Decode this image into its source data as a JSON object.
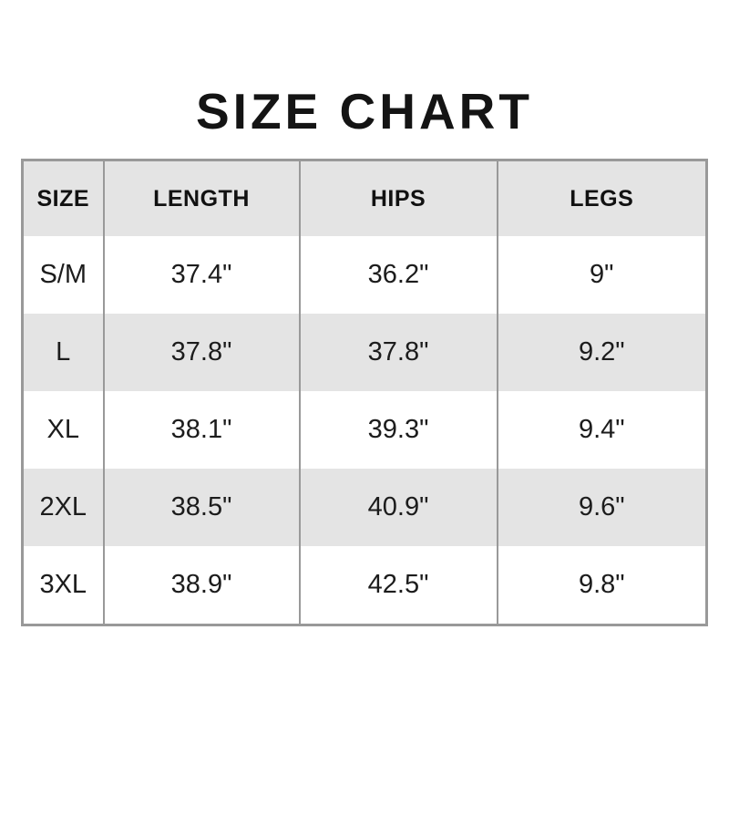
{
  "page_title": "SIZE CHART",
  "chart_data": {
    "type": "table",
    "title": "SIZE CHART",
    "columns": [
      "SIZE",
      "LENGTH",
      "HIPS",
      "LEGS"
    ],
    "rows": [
      [
        "S/M",
        "37.4\"",
        "36.2\"",
        "9\""
      ],
      [
        "L",
        "37.8\"",
        "37.8\"",
        "9.2\""
      ],
      [
        "XL",
        "38.1\"",
        "39.3\"",
        "9.4\""
      ],
      [
        "2XL",
        "38.5\"",
        "40.9\"",
        "9.6\""
      ],
      [
        "3XL",
        "38.9\"",
        "42.5\"",
        "9.8\""
      ]
    ],
    "layout": {
      "zebra_striping": true,
      "column_dividers": true,
      "row_dividers": false,
      "legend_position": "none"
    },
    "colors": {
      "header_background": "#e4e4e4",
      "row_background": "#ffffff",
      "row_alt_background": "#e4e4e4",
      "border": "#999999",
      "title_text": "#141414",
      "cell_text": "#1c1c1c"
    }
  }
}
